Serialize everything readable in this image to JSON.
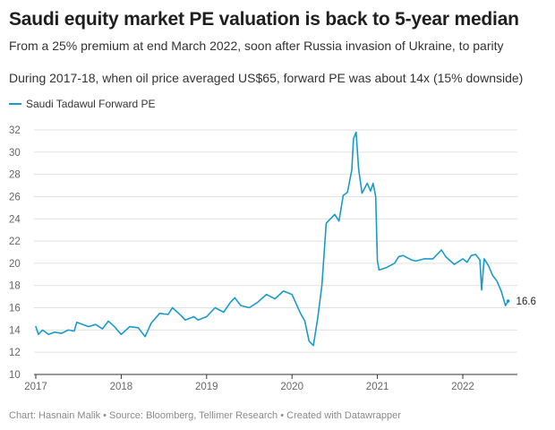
{
  "header": {
    "title": "Saudi equity market PE valuation is back to 5-year median",
    "subtitle": "From a 25% premium at end March 2022, soon after Russia invasion of Ukraine, to parity",
    "note": "During 2017-18, when oil price averaged US$65, forward PE was about 14x (15% downside)"
  },
  "footer": {
    "text": "Chart: Hasnain Malik • Source: Bloomberg, Tellimer Research • Created with Datawrapper"
  },
  "colors": {
    "line": "#1a9bc7",
    "grid": "#e1e1e1",
    "axis": "#333333"
  },
  "chart_data": {
    "type": "line",
    "title": "Saudi equity market PE valuation is back to 5-year median",
    "xlabel": "",
    "ylabel": "",
    "xlim": [
      2017,
      2022.6
    ],
    "ylim": [
      10,
      32
    ],
    "grid": true,
    "legend_position": "top-left",
    "x_ticks": [
      2017,
      2018,
      2019,
      2020,
      2021,
      2022
    ],
    "x_tick_labels": [
      "2017",
      "2018",
      "2019",
      "2020",
      "2021",
      "2022"
    ],
    "y_ticks": [
      10,
      12,
      14,
      16,
      18,
      20,
      22,
      24,
      26,
      28,
      30,
      32
    ],
    "y_tick_labels": [
      "10",
      "12",
      "14",
      "16",
      "18",
      "20",
      "22",
      "24",
      "26",
      "28",
      "30",
      "32"
    ],
    "end_label": "16.6",
    "series": [
      {
        "name": "Saudi Tadawul Forward PE",
        "x": [
          2017.0,
          2017.03,
          2017.08,
          2017.15,
          2017.22,
          2017.3,
          2017.38,
          2017.45,
          2017.48,
          2017.55,
          2017.62,
          2017.7,
          2017.78,
          2017.85,
          2017.92,
          2018.0,
          2018.1,
          2018.2,
          2018.28,
          2018.35,
          2018.45,
          2018.55,
          2018.6,
          2018.7,
          2018.75,
          2018.85,
          2018.9,
          2019.0,
          2019.1,
          2019.2,
          2019.28,
          2019.33,
          2019.4,
          2019.5,
          2019.6,
          2019.7,
          2019.8,
          2019.9,
          2020.0,
          2020.1,
          2020.15,
          2020.2,
          2020.25,
          2020.3,
          2020.35,
          2020.4,
          2020.45,
          2020.5,
          2020.55,
          2020.6,
          2020.65,
          2020.7,
          2020.72,
          2020.75,
          2020.78,
          2020.82,
          2020.88,
          2020.92,
          2020.95,
          2020.98,
          2021.0,
          2021.02,
          2021.1,
          2021.2,
          2021.25,
          2021.3,
          2021.4,
          2021.45,
          2021.55,
          2021.65,
          2021.75,
          2021.8,
          2021.9,
          2022.0,
          2022.05,
          2022.1,
          2022.15,
          2022.2,
          2022.22,
          2022.25,
          2022.3,
          2022.35,
          2022.4,
          2022.45,
          2022.5,
          2022.53
        ],
        "values": [
          14.3,
          13.6,
          14.0,
          13.6,
          13.8,
          13.7,
          14.0,
          13.9,
          14.7,
          14.5,
          14.3,
          14.5,
          14.1,
          14.8,
          14.3,
          13.6,
          14.3,
          14.2,
          13.4,
          14.6,
          15.5,
          15.4,
          16.0,
          15.3,
          14.9,
          15.2,
          14.9,
          15.2,
          16.0,
          15.6,
          16.5,
          16.9,
          16.2,
          16.0,
          16.5,
          17.2,
          16.8,
          17.5,
          17.2,
          15.5,
          14.8,
          13.0,
          12.6,
          15.0,
          18.0,
          23.6,
          24.0,
          24.4,
          23.8,
          26.1,
          26.4,
          28.4,
          31.2,
          31.8,
          28.5,
          26.3,
          27.2,
          26.5,
          27.2,
          26.0,
          20.2,
          19.4,
          19.6,
          20.0,
          20.6,
          20.7,
          20.3,
          20.2,
          20.4,
          20.4,
          21.2,
          20.6,
          19.9,
          20.4,
          20.1,
          20.7,
          20.8,
          20.3,
          17.6,
          20.4,
          19.8,
          18.9,
          18.4,
          17.5,
          16.2,
          16.6
        ]
      }
    ]
  }
}
